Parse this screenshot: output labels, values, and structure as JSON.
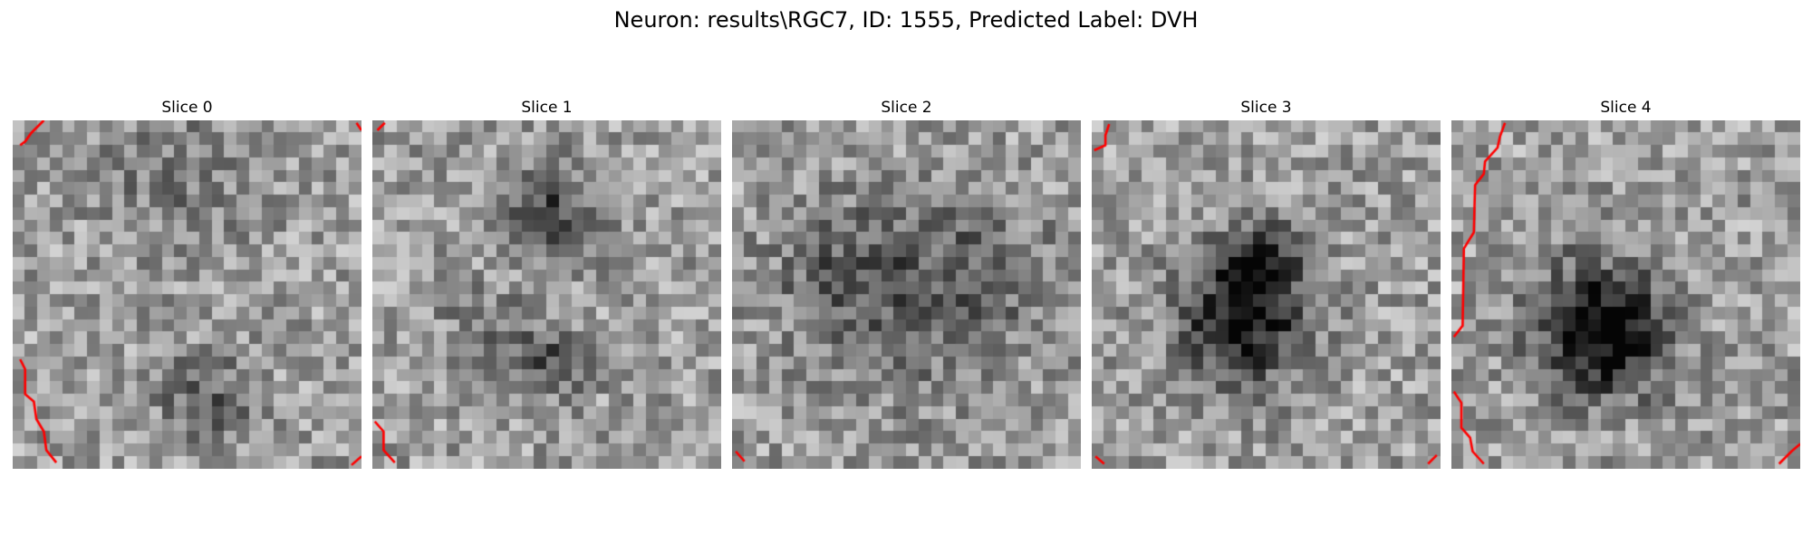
{
  "figure": {
    "title": "Neuron: results\\RGC7, ID: 1555, Predicted Label: DVH"
  },
  "panels": [
    {
      "title": "Slice 0"
    },
    {
      "title": "Slice 1"
    },
    {
      "title": "Slice 2"
    },
    {
      "title": "Slice 3"
    },
    {
      "title": "Slice 4"
    }
  ],
  "colors": {
    "colormap": "gray",
    "contour": "#ff0000",
    "background": "#ffffff"
  }
}
